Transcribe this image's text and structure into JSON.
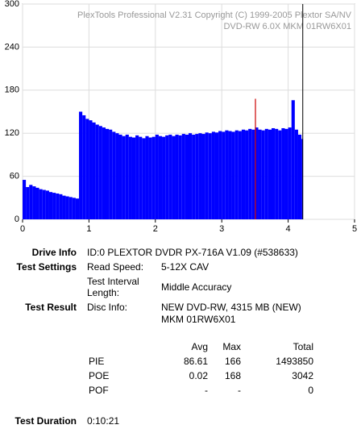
{
  "chart_data": {
    "type": "bar",
    "annotations": [
      "PlexTools Professional V2.31 Copyright (C) 1999-2005 Plextor SA/NV",
      "DVD-RW   6.0X   MKM 01RW6X01"
    ],
    "x": [
      0,
      0.05,
      0.1,
      0.15,
      0.2,
      0.25,
      0.3,
      0.35,
      0.4,
      0.45,
      0.5,
      0.55,
      0.6,
      0.65,
      0.7,
      0.75,
      0.8,
      0.85,
      0.9,
      0.95,
      1.0,
      1.05,
      1.1,
      1.15,
      1.2,
      1.25,
      1.3,
      1.35,
      1.4,
      1.45,
      1.5,
      1.55,
      1.6,
      1.65,
      1.7,
      1.75,
      1.8,
      1.85,
      1.9,
      1.95,
      2.0,
      2.05,
      2.1,
      2.15,
      2.2,
      2.25,
      2.3,
      2.35,
      2.4,
      2.45,
      2.5,
      2.55,
      2.6,
      2.65,
      2.7,
      2.75,
      2.8,
      2.85,
      2.9,
      2.95,
      3.0,
      3.05,
      3.1,
      3.15,
      3.2,
      3.25,
      3.3,
      3.35,
      3.4,
      3.45,
      3.5,
      3.55,
      3.6,
      3.65,
      3.7,
      3.75,
      3.8,
      3.85,
      3.9,
      3.95,
      4.0,
      4.05,
      4.1,
      4.15,
      4.2
    ],
    "series": [
      {
        "name": "PIE",
        "color": "#0000ff",
        "values": [
          55,
          45,
          48,
          46,
          44,
          42,
          41,
          40,
          38,
          37,
          36,
          35,
          33,
          32,
          31,
          30,
          29,
          150,
          145,
          140,
          138,
          135,
          132,
          130,
          128,
          126,
          125,
          122,
          120,
          118,
          116,
          118,
          115,
          114,
          117,
          115,
          113,
          116,
          114,
          115,
          118,
          116,
          115,
          117,
          118,
          116,
          118,
          117,
          119,
          118,
          120,
          118,
          119,
          120,
          119,
          121,
          120,
          122,
          121,
          123,
          122,
          124,
          123,
          122,
          124,
          123,
          125,
          124,
          126,
          125,
          128,
          125,
          124,
          126,
          125,
          127,
          126,
          124,
          127,
          126,
          128,
          166,
          125,
          118,
          112
        ]
      },
      {
        "name": "POE",
        "color": "#cc0000",
        "x": [
          3.5
        ],
        "values": [
          168
        ]
      }
    ],
    "end_marker_x": 4.22,
    "xlim": [
      0,
      5
    ],
    "xticks": [
      0,
      1,
      2,
      3,
      4,
      5
    ],
    "ylim": [
      0,
      300
    ],
    "yticks": [
      0,
      60,
      120,
      180,
      240,
      300
    ],
    "grid": true
  },
  "info": {
    "drive_info": {
      "label": "Drive Info",
      "value": "ID:0 PLEXTOR DVDR PX-716A V1.09 (#538633)"
    },
    "test_settings": {
      "label": "Test Settings",
      "read_speed_label": "Read Speed:",
      "read_speed": "5-12X CAV",
      "interval_label": "Test Interval Length:",
      "interval": "Middle Accuracy"
    },
    "test_result": {
      "label": "Test Result",
      "disc_info_label": "Disc Info:",
      "disc_info": [
        "NEW DVD-RW, 4315 MB (NEW)",
        "MKM 01RW6X01"
      ]
    },
    "table": {
      "header": [
        "Avg",
        "Max",
        "Total"
      ],
      "rows": [
        [
          "PIE",
          "86.61",
          "166",
          "1493850"
        ],
        [
          "POE",
          "0.02",
          "168",
          "3042"
        ],
        [
          "POF",
          "-",
          "-",
          "0"
        ]
      ]
    },
    "test_duration": {
      "label": "Test Duration",
      "value": "0:10:21"
    }
  }
}
